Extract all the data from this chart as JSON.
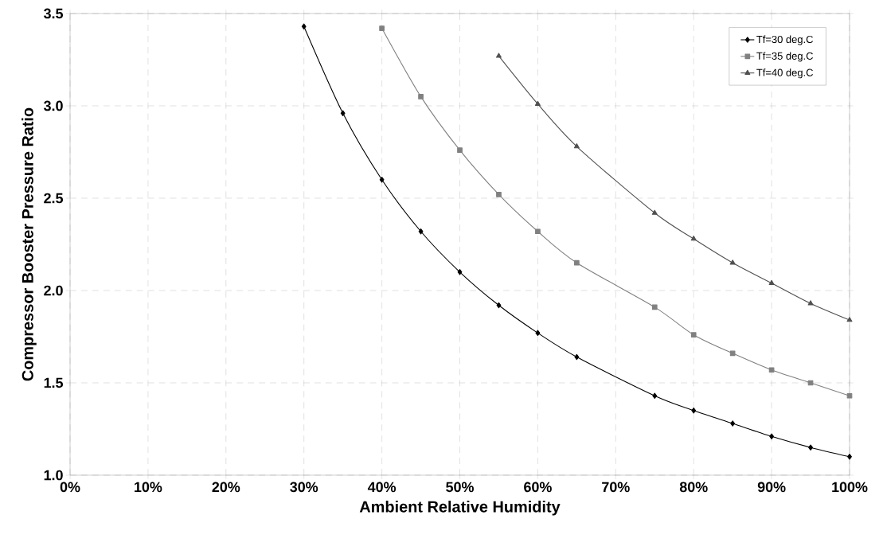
{
  "chart_data": {
    "type": "line",
    "xlabel": "Ambient Relative Humidity",
    "ylabel": "Compressor Booster Pressure Ratio",
    "series": [
      {
        "name": "Tf=30 deg.C",
        "color": "#000000",
        "marker": "diamond",
        "x": [
          30,
          35,
          40,
          45,
          50,
          55,
          60,
          65,
          75,
          80,
          85,
          90,
          95,
          100
        ],
        "values": [
          3.43,
          2.96,
          2.6,
          2.32,
          2.1,
          1.92,
          1.77,
          1.64,
          1.43,
          1.35,
          1.28,
          1.21,
          1.15,
          1.1
        ]
      },
      {
        "name": "Tf=35 deg.C",
        "color": "#808080",
        "marker": "square",
        "x": [
          40,
          45,
          50,
          55,
          60,
          65,
          75,
          80,
          85,
          90,
          95,
          100
        ],
        "values": [
          3.42,
          3.05,
          2.76,
          2.52,
          2.32,
          2.15,
          1.91,
          1.76,
          1.66,
          1.57,
          1.5,
          1.43
        ]
      },
      {
        "name": "Tf=40 deg.C",
        "color": "#505050",
        "marker": "triangle",
        "x": [
          55,
          60,
          65,
          75,
          80,
          85,
          90,
          95,
          100
        ],
        "values": [
          3.27,
          3.01,
          2.78,
          2.42,
          2.28,
          2.15,
          2.04,
          1.93,
          1.84
        ]
      }
    ],
    "xlim": [
      0,
      100
    ],
    "ylim": [
      1.0,
      3.5
    ],
    "xticks": [
      {
        "value": 0,
        "label": "0%"
      },
      {
        "value": 10,
        "label": "10%"
      },
      {
        "value": 20,
        "label": "20%"
      },
      {
        "value": 30,
        "label": "30%"
      },
      {
        "value": 40,
        "label": "40%"
      },
      {
        "value": 50,
        "label": "50%"
      },
      {
        "value": 60,
        "label": "60%"
      },
      {
        "value": 70,
        "label": "70%"
      },
      {
        "value": 80,
        "label": "80%"
      },
      {
        "value": 90,
        "label": "90%"
      },
      {
        "value": 100,
        "label": "100%"
      }
    ],
    "yticks": [
      {
        "value": 1.0,
        "label": "1.0"
      },
      {
        "value": 1.5,
        "label": "1.5"
      },
      {
        "value": 2.0,
        "label": "2.0"
      },
      {
        "value": 2.5,
        "label": "2.5"
      },
      {
        "value": 3.0,
        "label": "3.0"
      },
      {
        "value": 3.5,
        "label": "3.5"
      }
    ],
    "grid": true,
    "legend": "top right",
    "line_style": "solid"
  }
}
